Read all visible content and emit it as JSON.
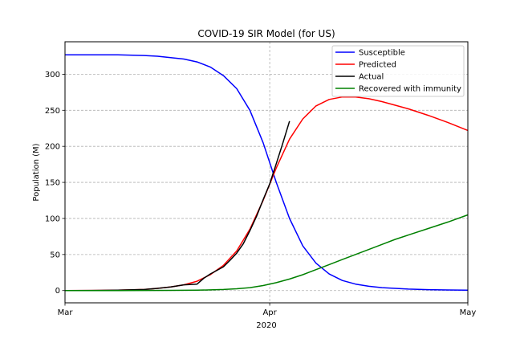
{
  "chart_data": {
    "type": "line",
    "title": "COVID-19 SIR Model (for US)",
    "xlabel": "2020",
    "ylabel": "Population (M)",
    "x_axis": {
      "type": "date",
      "range": [
        "2020-03-01",
        "2020-05-01"
      ],
      "ticks": [
        {
          "date": "2020-03-01",
          "label": "Mar"
        },
        {
          "date": "2020-04-01",
          "label": "Apr"
        },
        {
          "date": "2020-05-01",
          "label": "May"
        }
      ]
    },
    "ylim": [
      -17,
      345
    ],
    "yticks": [
      0,
      50,
      100,
      150,
      200,
      250,
      300
    ],
    "grid": true,
    "legend_position": "top-right",
    "series": [
      {
        "name": "Susceptible",
        "color": "#0000ff",
        "points": [
          [
            "2020-03-01",
            327
          ],
          [
            "2020-03-05",
            327
          ],
          [
            "2020-03-09",
            326.8
          ],
          [
            "2020-03-13",
            326
          ],
          [
            "2020-03-15",
            325
          ],
          [
            "2020-03-17",
            323
          ],
          [
            "2020-03-19",
            321
          ],
          [
            "2020-03-21",
            317
          ],
          [
            "2020-03-23",
            310
          ],
          [
            "2020-03-25",
            298
          ],
          [
            "2020-03-27",
            280
          ],
          [
            "2020-03-29",
            250
          ],
          [
            "2020-03-31",
            205
          ],
          [
            "2020-04-02",
            150
          ],
          [
            "2020-04-04",
            100
          ],
          [
            "2020-04-06",
            62
          ],
          [
            "2020-04-08",
            38
          ],
          [
            "2020-04-10",
            23
          ],
          [
            "2020-04-12",
            14
          ],
          [
            "2020-04-14",
            9
          ],
          [
            "2020-04-16",
            6
          ],
          [
            "2020-04-18",
            4
          ],
          [
            "2020-04-20",
            3
          ],
          [
            "2020-04-22",
            2
          ],
          [
            "2020-04-25",
            1.3
          ],
          [
            "2020-04-28",
            0.8
          ],
          [
            "2020-05-01",
            0.5
          ]
        ]
      },
      {
        "name": "Predicted",
        "color": "#ff0000",
        "points": [
          [
            "2020-03-01",
            0
          ],
          [
            "2020-03-05",
            0.2
          ],
          [
            "2020-03-09",
            0.5
          ],
          [
            "2020-03-13",
            1.5
          ],
          [
            "2020-03-15",
            3
          ],
          [
            "2020-03-17",
            5
          ],
          [
            "2020-03-19",
            8
          ],
          [
            "2020-03-21",
            13
          ],
          [
            "2020-03-23",
            22
          ],
          [
            "2020-03-25",
            35
          ],
          [
            "2020-03-27",
            55
          ],
          [
            "2020-03-29",
            85
          ],
          [
            "2020-03-31",
            125
          ],
          [
            "2020-04-02",
            170
          ],
          [
            "2020-04-04",
            210
          ],
          [
            "2020-04-06",
            238
          ],
          [
            "2020-04-08",
            256
          ],
          [
            "2020-04-10",
            265
          ],
          [
            "2020-04-12",
            268.5
          ],
          [
            "2020-04-14",
            268.5
          ],
          [
            "2020-04-16",
            266
          ],
          [
            "2020-04-18",
            262
          ],
          [
            "2020-04-20",
            257
          ],
          [
            "2020-04-22",
            252
          ],
          [
            "2020-04-25",
            243
          ],
          [
            "2020-04-28",
            233
          ],
          [
            "2020-05-01",
            222
          ]
        ]
      },
      {
        "name": "Actual",
        "color": "#000000",
        "points": [
          [
            "2020-03-01",
            0
          ],
          [
            "2020-03-05",
            0.2
          ],
          [
            "2020-03-09",
            0.5
          ],
          [
            "2020-03-13",
            1.5
          ],
          [
            "2020-03-15",
            3
          ],
          [
            "2020-03-17",
            5
          ],
          [
            "2020-03-19",
            8
          ],
          [
            "2020-03-21",
            9
          ],
          [
            "2020-03-22",
            17
          ],
          [
            "2020-03-23",
            23
          ],
          [
            "2020-03-24",
            28
          ],
          [
            "2020-03-25",
            33
          ],
          [
            "2020-03-26",
            42
          ],
          [
            "2020-03-27",
            52
          ],
          [
            "2020-03-28",
            65
          ],
          [
            "2020-03-29",
            83
          ],
          [
            "2020-03-30",
            103
          ],
          [
            "2020-03-31",
            126
          ],
          [
            "2020-04-01",
            148
          ],
          [
            "2020-04-02",
            176
          ],
          [
            "2020-04-03",
            205
          ],
          [
            "2020-04-04",
            235
          ]
        ]
      },
      {
        "name": "Recovered with immunity",
        "color": "#008000",
        "points": [
          [
            "2020-03-01",
            0
          ],
          [
            "2020-03-09",
            0
          ],
          [
            "2020-03-17",
            0.3
          ],
          [
            "2020-03-21",
            0.5
          ],
          [
            "2020-03-25",
            1.5
          ],
          [
            "2020-03-27",
            2.5
          ],
          [
            "2020-03-29",
            4
          ],
          [
            "2020-03-31",
            7
          ],
          [
            "2020-04-02",
            11
          ],
          [
            "2020-04-04",
            16
          ],
          [
            "2020-04-06",
            22
          ],
          [
            "2020-04-08",
            29
          ],
          [
            "2020-04-10",
            36
          ],
          [
            "2020-04-12",
            43
          ],
          [
            "2020-04-14",
            50
          ],
          [
            "2020-04-16",
            57
          ],
          [
            "2020-04-18",
            64
          ],
          [
            "2020-04-20",
            71
          ],
          [
            "2020-04-22",
            77
          ],
          [
            "2020-04-25",
            86
          ],
          [
            "2020-04-28",
            95
          ],
          [
            "2020-05-01",
            105
          ]
        ]
      }
    ]
  }
}
